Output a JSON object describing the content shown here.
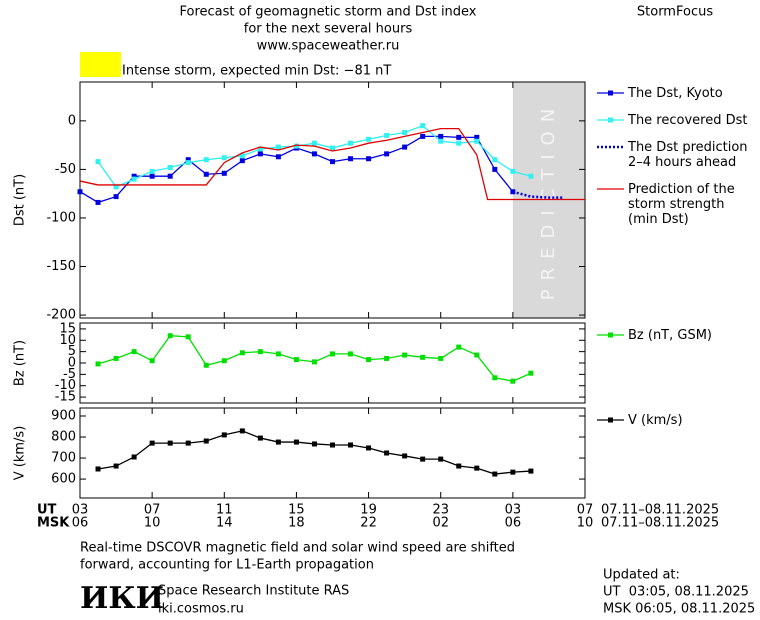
{
  "header": {
    "title": [
      "Forecast of geomagnetic storm and Dst index",
      "for the next several hours",
      "www.spaceweather.ru"
    ],
    "brand": "StormFocus",
    "alert": {
      "text": "Intense storm, expected min Dst: −81 nT",
      "color": "#ffff00"
    }
  },
  "chart_data": [
    {
      "type": "line",
      "ylabel": "Dst (nT)",
      "xlim": [
        3,
        31
      ],
      "xticks": [
        3,
        7,
        11,
        15,
        19,
        23,
        27,
        31
      ],
      "ylim": [
        -203,
        40
      ],
      "yticks": [
        0,
        -50,
        -100,
        -150,
        -200
      ],
      "shade": {
        "x": [
          27,
          31
        ],
        "label": "PREDICTION",
        "color": "#d9d9d9"
      },
      "series": [
        {
          "name": "The Dst, Kyoto",
          "color": "#0000e0",
          "style": "solid",
          "markers": true,
          "x": [
            3,
            4,
            5,
            6,
            7,
            8,
            9,
            10,
            11,
            12,
            13,
            14,
            15,
            16,
            17,
            18,
            19,
            20,
            21,
            22,
            23,
            24,
            25,
            26,
            27
          ],
          "values": [
            -73,
            -84,
            -78,
            -57,
            -57,
            -57,
            -40,
            -55,
            -54,
            -41,
            -34,
            -37,
            -28,
            -34,
            -42,
            -39,
            -39,
            -34,
            -27,
            -16,
            -16,
            -17,
            -17,
            -50,
            -73
          ]
        },
        {
          "name": "The recovered Dst",
          "color": "#30f0f0",
          "style": "solid",
          "markers": true,
          "x": [
            4,
            5,
            6,
            7,
            8,
            9,
            10,
            11,
            12,
            13,
            14,
            15,
            16,
            17,
            18,
            19,
            20,
            21,
            22,
            23,
            24,
            25,
            26,
            27,
            28
          ],
          "values": [
            -42,
            -68,
            -60,
            -52,
            -48,
            -43,
            -40,
            -38,
            -36,
            -29,
            -27,
            -26,
            -23,
            -28,
            -23,
            -19,
            -15,
            -12,
            -5,
            -21,
            -23,
            -21,
            -40,
            -52,
            -57
          ]
        },
        {
          "name": "The Dst prediction\n2–4 hours ahead",
          "color": "#0000e0",
          "style": "dotted",
          "markers": false,
          "x": [
            27,
            28,
            29,
            29.8
          ],
          "values": [
            -73,
            -78,
            -79,
            -79
          ]
        },
        {
          "name": "Prediction of the\nstorm strength\n(min Dst)",
          "color": "#e00000",
          "style": "solid",
          "markers": false,
          "x": [
            3,
            4,
            10,
            11,
            12,
            13,
            14,
            15,
            16,
            17,
            18,
            19,
            20,
            21,
            22,
            23,
            24,
            25,
            25.6,
            31
          ],
          "values": [
            -62,
            -66,
            -66,
            -43,
            -33,
            -27,
            -30,
            -25,
            -26,
            -31,
            -28,
            -23,
            -20,
            -16,
            -12,
            -8,
            -8,
            -35,
            -81,
            -81
          ]
        }
      ]
    },
    {
      "type": "line",
      "ylabel": "Bz (nT)",
      "xlim": [
        3,
        31
      ],
      "xticks": [
        3,
        7,
        11,
        15,
        19,
        23,
        27,
        31
      ],
      "ylim": [
        -17.6,
        17.6
      ],
      "yticks": [
        15,
        10,
        5,
        0,
        -5,
        -10,
        -15
      ],
      "series": [
        {
          "name": "Bz (nT, GSM)",
          "color": "#00e000",
          "style": "solid",
          "markers": true,
          "x": [
            4,
            5,
            6,
            7,
            8,
            9,
            10,
            11,
            12,
            13,
            14,
            15,
            16,
            17,
            18,
            19,
            20,
            21,
            22,
            23,
            24,
            25,
            26,
            27,
            28
          ],
          "values": [
            -0.4,
            2,
            5,
            1,
            12,
            11.5,
            -1,
            1,
            4.5,
            5,
            4,
            1.5,
            0.5,
            4,
            4,
            1.5,
            2,
            3.5,
            2.5,
            2,
            7,
            3.5,
            -6.5,
            -8,
            -4.5
          ]
        }
      ]
    },
    {
      "type": "line",
      "ylabel": "V (km/s)",
      "xlim": [
        3,
        31
      ],
      "xticks": [
        3,
        7,
        11,
        15,
        19,
        23,
        27,
        31
      ],
      "ylim": [
        510,
        938
      ],
      "yticks": [
        900,
        800,
        700,
        600
      ],
      "x_rows": [
        {
          "name": "UT",
          "labels": [
            "03",
            "07",
            "11",
            "15",
            "19",
            "23",
            "03",
            "07"
          ],
          "range": "07.11–08.11.2025"
        },
        {
          "name": "MSK",
          "labels": [
            "06",
            "10",
            "14",
            "18",
            "22",
            "02",
            "06",
            "10"
          ],
          "range": "07.11–08.11.2025"
        }
      ],
      "series": [
        {
          "name": "V (km/s)",
          "color": "#000000",
          "style": "solid",
          "markers": true,
          "x": [
            4,
            5,
            6,
            7,
            8,
            9,
            10,
            11,
            12,
            13,
            14,
            15,
            16,
            17,
            18,
            19,
            20,
            21,
            22,
            23,
            24,
            25,
            26,
            27,
            28
          ],
          "values": [
            648,
            662,
            705,
            771,
            771,
            771,
            781,
            810,
            829,
            795,
            776,
            776,
            767,
            762,
            762,
            748,
            724,
            710,
            695,
            695,
            662,
            652,
            624,
            633,
            638
          ]
        }
      ]
    }
  ],
  "footer": {
    "note": [
      "Real-time DSCOVR magnetic field and solar wind speed are shifted",
      "forward, accounting for L1-Earth propagation"
    ],
    "logo": "ИКИ",
    "institute": "Space Research Institute RAS",
    "site": "iki.cosmos.ru",
    "updated": [
      "Updated at:",
      "UT  03:05, 08.11.2025",
      "MSK 06:05, 08.11.2025"
    ]
  }
}
